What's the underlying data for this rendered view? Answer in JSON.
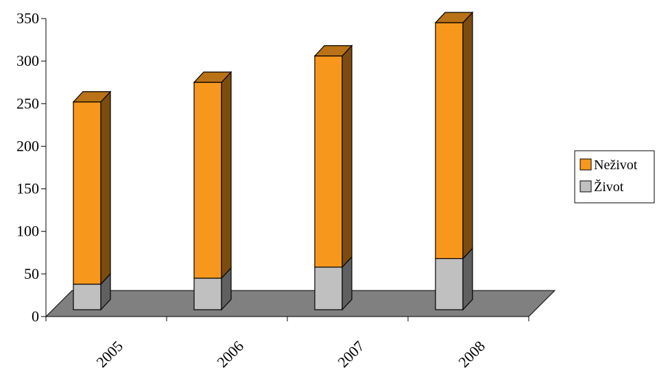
{
  "chart_data": {
    "type": "bar",
    "stacked": true,
    "three_d": true,
    "categories": [
      "2005",
      "2006",
      "2007",
      "2008"
    ],
    "series": [
      {
        "name": "Život",
        "values": [
          30,
          37,
          50,
          60
        ],
        "color": "#c0c0c0"
      },
      {
        "name": "Neživot",
        "values": [
          214,
          230,
          248,
          277
        ],
        "color": "#f7981d"
      }
    ],
    "ylim": [
      0,
      350
    ],
    "yticks": [
      "0",
      "50",
      "100",
      "150",
      "200",
      "250",
      "300",
      "350"
    ],
    "legend": {
      "placement": "right",
      "order": [
        "Neživot",
        "Život"
      ]
    },
    "floor_color": "#808080"
  }
}
